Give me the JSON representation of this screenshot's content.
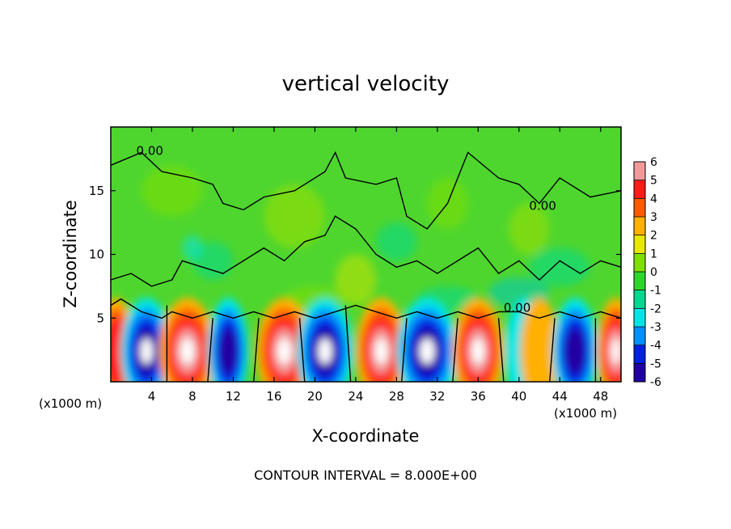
{
  "chart_data": {
    "type": "heatmap",
    "title": "vertical velocity",
    "xlabel": "X-coordinate",
    "ylabel": "Z-coordinate",
    "x_scale_note_left": "(x1000 m)",
    "x_scale_note_right": "(x1000 m)",
    "footer": "CONTOUR INTERVAL = 8.000E+00",
    "xlim": [
      0,
      50
    ],
    "ylim": [
      0,
      20
    ],
    "x_ticks": [
      4,
      8,
      12,
      16,
      20,
      24,
      28,
      32,
      36,
      40,
      44,
      48
    ],
    "x_tick_labels": [
      "4",
      "8",
      "12",
      "16",
      "20",
      "24",
      "28",
      "32",
      "36",
      "40",
      "44",
      "48"
    ],
    "y_ticks": [
      5,
      10,
      15
    ],
    "y_tick_labels": [
      "5",
      "10",
      "15"
    ],
    "colorbar": {
      "range": [
        -6,
        6
      ],
      "levels": [
        "6",
        "5",
        "4",
        "3",
        "2",
        "1",
        "0",
        "-1",
        "-2",
        "-3",
        "-4",
        "-5",
        "-6"
      ],
      "colors": [
        "#f29a9a",
        "#ff1a1a",
        "#ff5a00",
        "#ffb000",
        "#e8e800",
        "#7fe000",
        "#2fd52f",
        "#00d890",
        "#00e6e6",
        "#0090ff",
        "#0020e0",
        "#2000a0",
        "#8000b0"
      ]
    },
    "contour_labels": [
      "0.00",
      "0.00",
      "0.00"
    ],
    "cells": [
      {
        "x": 0.5,
        "w": 1.5,
        "sign": "up",
        "strength": 4
      },
      {
        "x": 3.5,
        "w": 2.0,
        "sign": "down",
        "strength": 8
      },
      {
        "x": 7.5,
        "w": 2.2,
        "sign": "up",
        "strength": 8
      },
      {
        "x": 11.5,
        "w": 1.6,
        "sign": "down",
        "strength": 7
      },
      {
        "x": 17.0,
        "w": 2.2,
        "sign": "up",
        "strength": 8
      },
      {
        "x": 21.0,
        "w": 2.2,
        "sign": "down",
        "strength": 8
      },
      {
        "x": 26.5,
        "w": 2.0,
        "sign": "up",
        "strength": 8
      },
      {
        "x": 31.0,
        "w": 2.4,
        "sign": "down",
        "strength": 8
      },
      {
        "x": 36.0,
        "w": 2.0,
        "sign": "up",
        "strength": 8
      },
      {
        "x": 40.5,
        "w": 1.5,
        "sign": "down",
        "strength": 2
      },
      {
        "x": 42.0,
        "w": 1.5,
        "sign": "up",
        "strength": 2
      },
      {
        "x": 45.5,
        "w": 1.8,
        "sign": "down",
        "strength": 7
      },
      {
        "x": 49.5,
        "w": 1.5,
        "sign": "up",
        "strength": 8
      }
    ]
  }
}
